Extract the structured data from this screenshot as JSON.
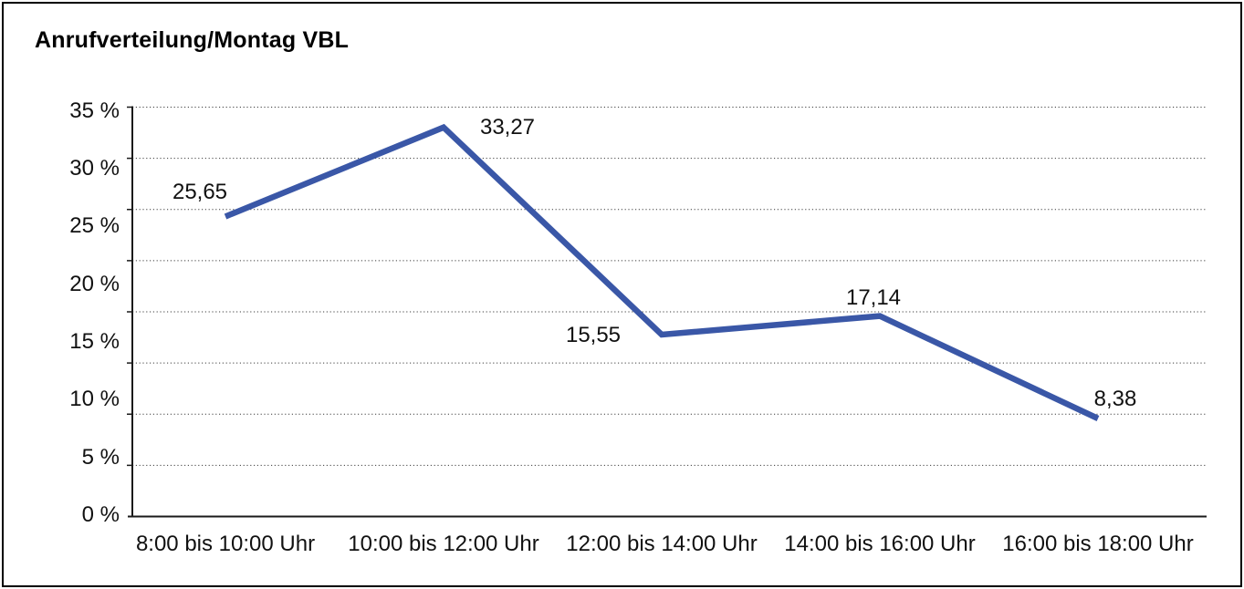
{
  "title": "Anrufverteilung/Montag VBL",
  "chart_data": {
    "type": "line",
    "title": "Anrufverteilung/Montag VBL",
    "categories": [
      "8:00 bis 10:00 Uhr",
      "10:00 bis 12:00 Uhr",
      "12:00 bis 14:00 Uhr",
      "14:00 bis 16:00 Uhr",
      "16:00 bis 18:00 Uhr"
    ],
    "values": [
      25.65,
      33.27,
      15.55,
      17.14,
      8.38
    ],
    "value_labels": [
      "25,65",
      "33,27",
      "15,55",
      "17,14",
      "8,38"
    ],
    "y_tick_labels": [
      "35 %",
      "30 %",
      "25 %",
      "20 %",
      "15 %",
      "10 %",
      "5 %",
      "0 %"
    ],
    "ylim": [
      0,
      35
    ],
    "xlabel": "",
    "ylabel": "",
    "legend": "none",
    "grid": "horizontal-dotted",
    "line_color": "#3A57A7",
    "axis_color": "#1a1a1a",
    "gridline_color": "#3c3c3c",
    "background_color": "#ffffff",
    "border_color": "#000000"
  }
}
